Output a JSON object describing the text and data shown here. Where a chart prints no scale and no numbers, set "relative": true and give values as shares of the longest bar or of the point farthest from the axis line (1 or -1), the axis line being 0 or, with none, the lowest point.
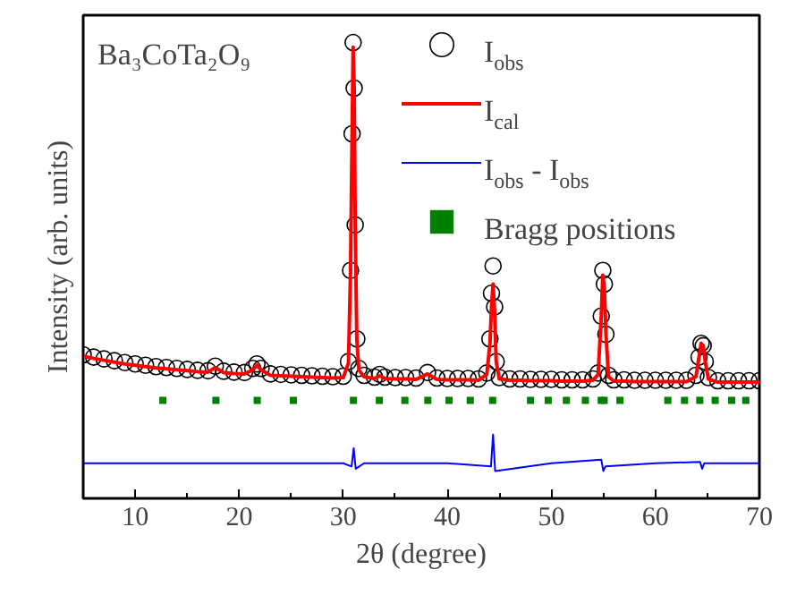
{
  "chart_data": {
    "type": "scatter",
    "relative": true,
    "xlabel": "2θ (degree)",
    "ylabel": "Intensity (arb. units)",
    "annotations": [
      "Ba₃CoTa₂O₉"
    ],
    "xlim": [
      5,
      70
    ],
    "xticks": [
      10,
      20,
      30,
      40,
      50,
      60,
      70
    ],
    "grid": false,
    "legend": "top right",
    "x": [
      5,
      6,
      7,
      8,
      9,
      10,
      11,
      12,
      13,
      14,
      15,
      16,
      17,
      17.7,
      18.5,
      19.5,
      20.5,
      21.3,
      21.7,
      22.1,
      23,
      24,
      25,
      26,
      27,
      28,
      29,
      30,
      30.5,
      30.7,
      30.85,
      30.95,
      31.05,
      31.15,
      31.3,
      31.5,
      32,
      33,
      33.5,
      34,
      35,
      36,
      37,
      38.1,
      39,
      40,
      41,
      42,
      43,
      43.8,
      44.1,
      44.25,
      44.4,
      44.55,
      44.7,
      45,
      46,
      47,
      48,
      49,
      50,
      51,
      52,
      53,
      54,
      54.5,
      54.8,
      54.95,
      55.1,
      55.25,
      55.5,
      56,
      57,
      58,
      59,
      60,
      61,
      62,
      63,
      63.9,
      64.2,
      64.4,
      64.6,
      64.8,
      65.1,
      66,
      67,
      68,
      69,
      70
    ],
    "series": [
      {
        "name": "I$_{obs}$",
        "marker": "circle",
        "color": "#000000",
        "values": [
          0.315,
          0.31,
          0.306,
          0.302,
          0.298,
          0.295,
          0.292,
          0.289,
          0.287,
          0.285,
          0.283,
          0.281,
          0.28,
          0.29,
          0.279,
          0.277,
          0.276,
          0.285,
          0.295,
          0.285,
          0.273,
          0.272,
          0.271,
          0.27,
          0.269,
          0.268,
          0.267,
          0.268,
          0.3,
          0.5,
          0.8,
          1,
          0.9,
          0.6,
          0.35,
          0.285,
          0.27,
          0.266,
          0.272,
          0.266,
          0.265,
          0.265,
          0.264,
          0.276,
          0.264,
          0.263,
          0.263,
          0.263,
          0.262,
          0.275,
          0.35,
          0.45,
          0.51,
          0.42,
          0.3,
          0.265,
          0.262,
          0.262,
          0.261,
          0.261,
          0.261,
          0.26,
          0.26,
          0.26,
          0.262,
          0.275,
          0.4,
          0.5,
          0.47,
          0.36,
          0.27,
          0.26,
          0.26,
          0.259,
          0.259,
          0.259,
          0.259,
          0.259,
          0.259,
          0.27,
          0.31,
          0.34,
          0.335,
          0.3,
          0.265,
          0.258,
          0.258,
          0.258,
          0.258,
          0.258
        ]
      },
      {
        "name": "I$_{cal}$",
        "type": "line",
        "line_style": "solid",
        "color": "#ff0000",
        "values": [
          0.312,
          0.307,
          0.303,
          0.299,
          0.295,
          0.292,
          0.289,
          0.286,
          0.284,
          0.282,
          0.28,
          0.278,
          0.277,
          0.287,
          0.276,
          0.274,
          0.273,
          0.282,
          0.292,
          0.282,
          0.27,
          0.269,
          0.268,
          0.267,
          0.266,
          0.265,
          0.264,
          0.265,
          0.297,
          0.5,
          0.8,
          0.99,
          0.9,
          0.6,
          0.35,
          0.282,
          0.267,
          0.263,
          0.269,
          0.263,
          0.262,
          0.262,
          0.261,
          0.273,
          0.261,
          0.26,
          0.26,
          0.26,
          0.259,
          0.272,
          0.34,
          0.42,
          0.47,
          0.41,
          0.3,
          0.262,
          0.259,
          0.259,
          0.258,
          0.258,
          0.258,
          0.257,
          0.257,
          0.257,
          0.259,
          0.272,
          0.4,
          0.49,
          0.46,
          0.36,
          0.267,
          0.257,
          0.257,
          0.256,
          0.256,
          0.256,
          0.256,
          0.256,
          0.256,
          0.267,
          0.31,
          0.34,
          0.335,
          0.3,
          0.262,
          0.255,
          0.255,
          0.255,
          0.255,
          0.255
        ]
      },
      {
        "name": "I$_{obs}$ - I$_{obs}$",
        "type": "line",
        "line_style": "solid",
        "color": "#0000ff",
        "x": [
          5,
          10,
          20,
          30,
          30.8,
          31.0,
          31.2,
          32,
          40,
          44.2,
          44.4,
          44.6,
          50,
          54.8,
          55.0,
          55.2,
          60,
          64.3,
          64.5,
          64.7,
          70
        ],
        "values": [
          0.077,
          0.077,
          0.077,
          0.077,
          0.07,
          0.11,
          0.065,
          0.077,
          0.077,
          0.07,
          0.14,
          0.06,
          0.077,
          0.085,
          0.06,
          0.07,
          0.077,
          0.08,
          0.065,
          0.077,
          0.077
        ]
      },
      {
        "name": "Bragg positions",
        "marker": "square",
        "color": "#008000",
        "x": [
          12.66,
          17.76,
          21.73,
          25.2,
          30.98,
          33.47,
          35.92,
          38.13,
          40.17,
          42.21,
          44.36,
          48.0,
          49.7,
          51.45,
          53.27,
          54.8,
          55.08,
          56.6,
          61.2,
          62.8,
          64.27,
          65.75,
          67.33,
          68.69
        ],
        "values": [
          0.215,
          0.215,
          0.215,
          0.215,
          0.215,
          0.215,
          0.215,
          0.215,
          0.215,
          0.215,
          0.215,
          0.215,
          0.215,
          0.215,
          0.215,
          0.215,
          0.215,
          0.215,
          0.215,
          0.215,
          0.215,
          0.215,
          0.215,
          0.215
        ]
      }
    ]
  }
}
